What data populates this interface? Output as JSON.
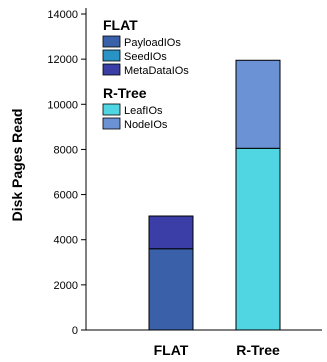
{
  "chart_data": {
    "type": "bar",
    "stacked": true,
    "ylabel": "Disk Pages Read",
    "ylim": [
      0,
      14000
    ],
    "yticks": [
      0,
      2000,
      4000,
      6000,
      8000,
      10000,
      12000,
      14000
    ],
    "categories": [
      "FLAT",
      "R-Tree"
    ],
    "legend_groups": [
      {
        "header": "FLAT",
        "entries": [
          {
            "name": "PayloadIOs",
            "color": "#3a60aa"
          },
          {
            "name": "SeedIOs",
            "color": "#2a93c6"
          },
          {
            "name": "MetaDataIOs",
            "color": "#3a3ea6"
          }
        ]
      },
      {
        "header": "R-Tree",
        "entries": [
          {
            "name": "LeafIOs",
            "color": "#4fd6e2"
          },
          {
            "name": "NodeIOs",
            "color": "#6b92d4"
          }
        ]
      }
    ],
    "series": [
      {
        "name": "PayloadIOs",
        "color": "#3a60aa",
        "values": [
          3600,
          0
        ]
      },
      {
        "name": "SeedIOs",
        "color": "#2a93c6",
        "values": [
          0,
          0
        ]
      },
      {
        "name": "MetaDataIOs",
        "color": "#3a3ea6",
        "values": [
          1450,
          0
        ]
      },
      {
        "name": "LeafIOs",
        "color": "#4fd6e2",
        "values": [
          0,
          8050
        ]
      },
      {
        "name": "NodeIOs",
        "color": "#6b92d4",
        "values": [
          0,
          3900
        ]
      }
    ],
    "grid": false,
    "legend_position": "top-left"
  }
}
